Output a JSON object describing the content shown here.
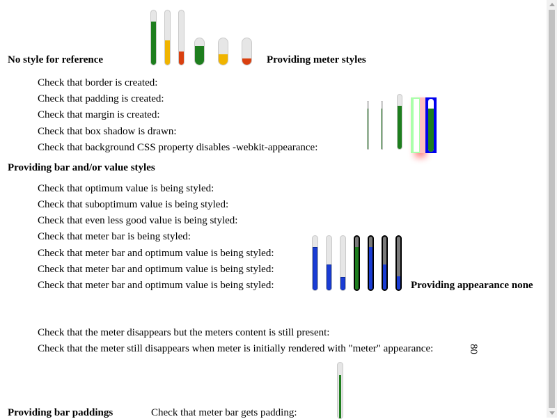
{
  "sections": {
    "no_style": "No style for reference",
    "meter_styles": "Providing meter styles",
    "bar_value_styles": "Providing bar and/or value styles",
    "appearance_none": "Providing appearance none",
    "bar_paddings": "Providing bar paddings"
  },
  "meter_style_checks": [
    "Check that border is created:",
    "Check that padding is created:",
    "Check that margin is created:",
    "Check that box shadow is drawn:",
    "Check that background CSS property disables -webkit-appearance:"
  ],
  "bar_value_checks": [
    "Check that optimum value is being styled:",
    "Check that suboptimum value is being styled:",
    "Check that even less good value is being styled:",
    "Check that meter bar is being styled:",
    "Check that meter bar and optimum value is being styled:",
    "Check that meter bar and optimum value is being styled:",
    "Check that meter bar and optimum value is being styled:"
  ],
  "appearance_checks": [
    "Check that the meter disappears but the meters content is still present:",
    "Check that the meter still disappears when meter is initially rendered with \"meter\" appearance:"
  ],
  "rotated_content": "80",
  "padding_check": "Check that meter bar gets padding:",
  "reference_meters": [
    {
      "value": 0.8,
      "color": "#1e7e1e"
    },
    {
      "value": 0.45,
      "color": "#f0b400"
    },
    {
      "value": 0.25,
      "color": "#d94010"
    }
  ],
  "reference_meters_wide": [
    {
      "value": 0.55,
      "color": "#1e7e1e"
    },
    {
      "value": 0.4,
      "color": "#f0b400"
    },
    {
      "value": 0.25,
      "color": "#d94010"
    }
  ],
  "blue_meters": [
    {
      "value": 0.8,
      "color": "#1a3cd4"
    },
    {
      "value": 0.5,
      "color": "#1a3cd4"
    },
    {
      "value": 0.25,
      "color": "#1a3cd4"
    }
  ],
  "dark_meters": [
    {
      "value": 0.8,
      "color": "#1e7e1e"
    },
    {
      "value": 0.8,
      "color": "#1a3cd4"
    },
    {
      "value": 0.5,
      "color": "#1a3cd4"
    },
    {
      "value": 0.25,
      "color": "#1a3cd4"
    }
  ],
  "colors": {
    "green": "#1e7e1e",
    "yellow": "#f0b400",
    "red": "#d94010",
    "blue": "#1a3cd4"
  }
}
